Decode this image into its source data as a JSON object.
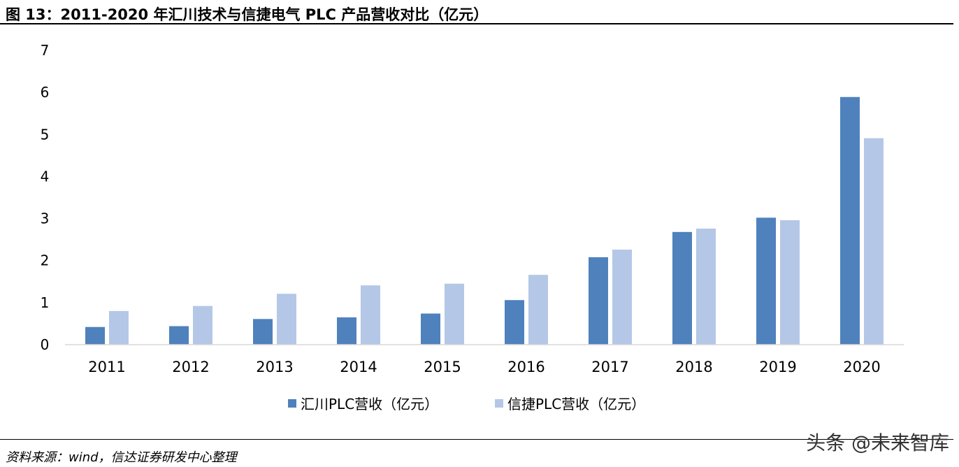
{
  "figure": {
    "title": "图 13：2011-2020 年汇川技术与信捷电气 PLC 产品营收对比（亿元）",
    "source": "资料来源：wind，信达证券研发中心整理",
    "watermark": "头条 @未来智库"
  },
  "chart_data": {
    "type": "bar",
    "categories": [
      "2011",
      "2012",
      "2013",
      "2014",
      "2015",
      "2016",
      "2017",
      "2018",
      "2019",
      "2020"
    ],
    "series": [
      {
        "name": "汇川PLC营收（亿元）",
        "color": "#4f81bd",
        "values": [
          0.42,
          0.44,
          0.61,
          0.65,
          0.74,
          1.06,
          2.08,
          2.68,
          3.02,
          5.89
        ]
      },
      {
        "name": "信捷PLC营收（亿元）",
        "color": "#b4c7e7",
        "values": [
          0.8,
          0.92,
          1.21,
          1.41,
          1.45,
          1.66,
          2.26,
          2.76,
          2.96,
          4.91
        ]
      }
    ],
    "yticks": [
      0,
      1,
      2,
      3,
      4,
      5,
      6,
      7
    ],
    "ylim": [
      0,
      7
    ],
    "grid": false,
    "legend": "bottom-center"
  }
}
